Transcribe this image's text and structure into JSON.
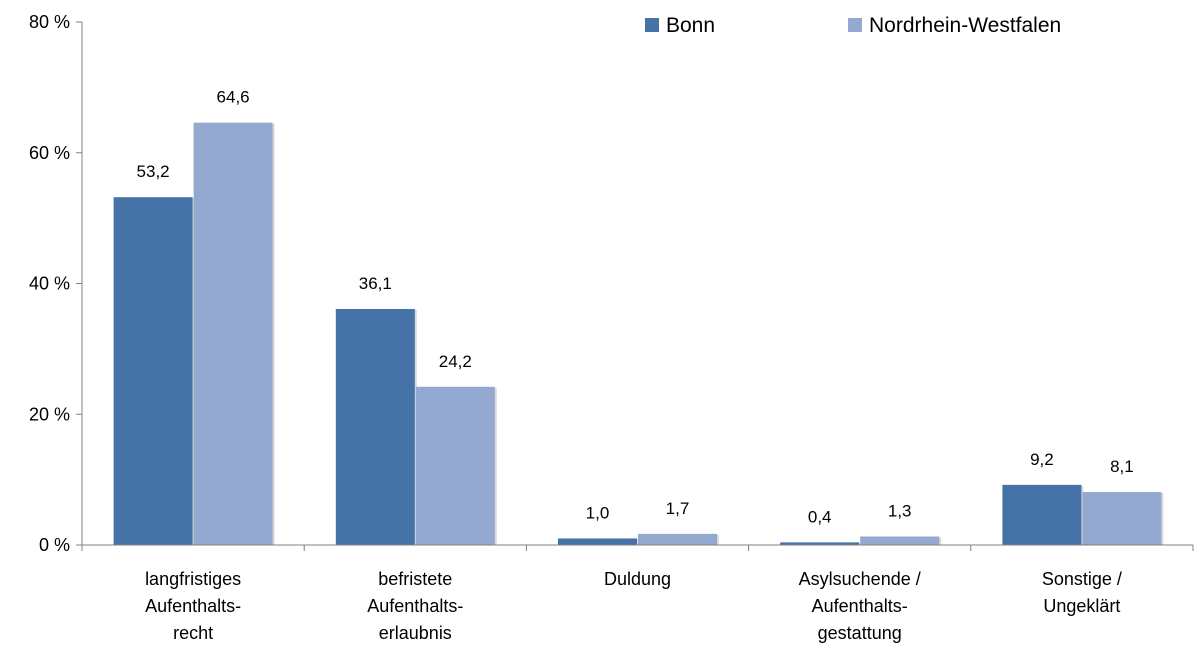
{
  "chart_data": {
    "type": "bar",
    "categories": [
      [
        "langfristiges",
        "Aufenthalts-",
        "recht"
      ],
      [
        "befristete",
        "Aufenthalts-",
        "erlaubnis"
      ],
      [
        "Duldung"
      ],
      [
        "Asylsuchende /",
        "Aufenthalts-",
        "gestattung"
      ],
      [
        "Sonstige /",
        "Ungeklärt"
      ]
    ],
    "series": [
      {
        "name": "Bonn",
        "color": "#4572a7",
        "values": [
          53.2,
          36.1,
          1.0,
          0.4,
          9.2
        ],
        "labels": [
          "53,2",
          "36,1",
          "1,0",
          "0,4",
          "9,2"
        ]
      },
      {
        "name": "Nordrhein-Westfalen",
        "color": "#93a9cf",
        "values": [
          64.6,
          24.2,
          1.7,
          1.3,
          8.1
        ],
        "labels": [
          "64,6",
          "24,2",
          "1,7",
          "1,3",
          "8,1"
        ]
      }
    ],
    "ylim": [
      0,
      80
    ],
    "yticks": [
      0,
      20,
      40,
      60,
      80
    ],
    "ytick_labels": [
      "0 %",
      "20 %",
      "40 %",
      "60 %",
      "80 %"
    ],
    "grid": false,
    "legend_position": "top-right"
  }
}
